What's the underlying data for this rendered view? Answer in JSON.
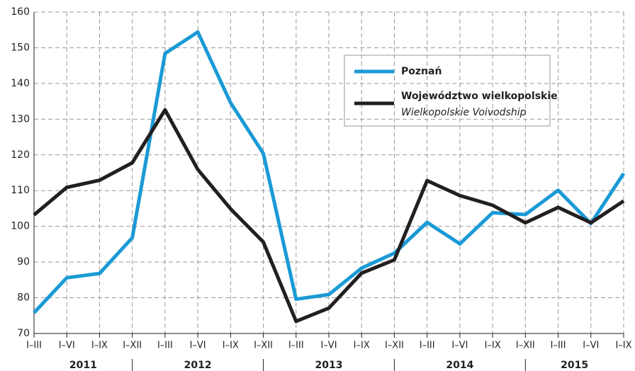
{
  "chart_data": {
    "type": "line",
    "categories": [
      "I–III",
      "I–VI",
      "I–IX",
      "I–XII",
      "I–III",
      "I–VI",
      "I–IX",
      "I–XII",
      "I–III",
      "I–VI",
      "I–IX",
      "I–XII",
      "I–III",
      "I–VI",
      "I–IX",
      "I–XII",
      "I–III",
      "I–VI",
      "I–IX"
    ],
    "years": [
      "2011",
      "2012",
      "2013",
      "2014",
      "2015"
    ],
    "series": [
      {
        "name": "Poznań",
        "color": "#1a9ad6",
        "values": [
          75.8,
          85.6,
          86.8,
          96.8,
          148.4,
          154.4,
          134.6,
          120.4,
          79.6,
          80.9,
          88.3,
          92.5,
          101.1,
          95.1,
          103.8,
          103.3,
          110.1,
          100.8,
          114.8
        ]
      },
      {
        "name": "Województwo wielkopolskie",
        "subtitle": "Wielkopolskie Voivodship",
        "color": "#231f20",
        "values": [
          103.2,
          110.9,
          112.9,
          117.8,
          132.6,
          115.9,
          104.9,
          95.6,
          73.4,
          77.1,
          86.9,
          90.6,
          112.8,
          108.6,
          105.9,
          101.0,
          105.3,
          101.0,
          107.1
        ]
      }
    ],
    "ylim": [
      70,
      160
    ],
    "yticks": [
      70,
      80,
      90,
      100,
      110,
      120,
      130,
      140,
      150,
      160
    ],
    "grid": true
  }
}
